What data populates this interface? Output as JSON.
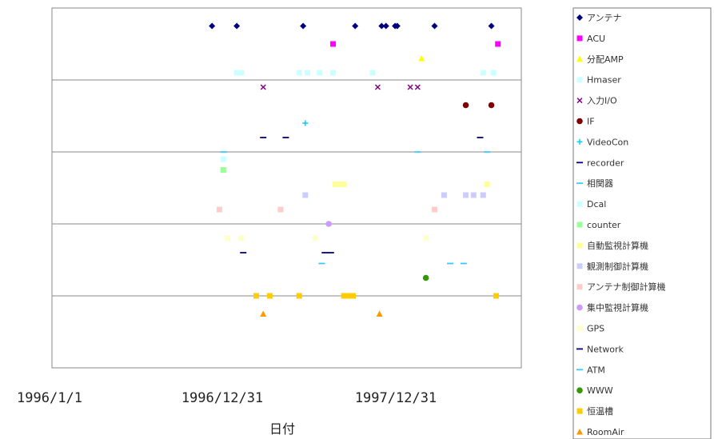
{
  "chart_data": {
    "type": "scatter",
    "title": "",
    "xlabel": "日付",
    "ylabel": "",
    "x_tick_labels": [
      "1996/1/1",
      "1996/12/31",
      "1997/12/31"
    ],
    "xlim": [
      "1995/07/12",
      "1998/06/28"
    ],
    "ylim": [
      0,
      5
    ],
    "grid": "horizontal",
    "legend_position": "right",
    "series": [
      {
        "name": "アンテナ",
        "color": "#000080",
        "marker": "diamond",
        "points": [
          [
            "1996/07/15",
            4.75
          ],
          [
            "1996/09/10",
            4.75
          ],
          [
            "1997/02/10",
            4.75
          ],
          [
            "1997/06/10",
            4.75
          ],
          [
            "1997/08/10",
            4.75
          ],
          [
            "1997/08/20",
            4.75
          ],
          [
            "1997/09/10",
            4.75
          ],
          [
            "1997/09/15",
            4.75
          ],
          [
            "1997/12/10",
            4.75
          ],
          [
            "1998/04/20",
            4.75
          ]
        ]
      },
      {
        "name": "ACU",
        "color": "#ff00ff",
        "marker": "square",
        "points": [
          [
            "1997/04/20",
            4.5
          ],
          [
            "1998/05/05",
            4.5
          ]
        ]
      },
      {
        "name": "分配AMP",
        "color": "#ffff00",
        "marker": "triangle",
        "points": [
          [
            "1997/11/10",
            4.3
          ]
        ]
      },
      {
        "name": "Hmaser",
        "color": "#ccffff",
        "marker": "square",
        "points": [
          [
            "1996/09/10",
            4.1
          ],
          [
            "1996/09/20",
            4.1
          ],
          [
            "1997/02/01",
            4.1
          ],
          [
            "1997/02/20",
            4.1
          ],
          [
            "1997/03/20",
            4.1
          ],
          [
            "1997/04/20",
            4.1
          ],
          [
            "1997/07/20",
            4.1
          ],
          [
            "1998/04/01",
            4.1
          ],
          [
            "1998/04/25",
            4.1
          ]
        ]
      },
      {
        "name": "入力I/O",
        "color": "#800080",
        "marker": "x",
        "points": [
          [
            "1996/11/10",
            3.9
          ],
          [
            "1997/08/01",
            3.9
          ],
          [
            "1997/10/15",
            3.9
          ],
          [
            "1997/11/01",
            3.9
          ]
        ]
      },
      {
        "name": "IF",
        "color": "#800000",
        "marker": "circle",
        "points": [
          [
            "1998/02/20",
            3.65
          ],
          [
            "1998/04/20",
            3.65
          ]
        ]
      },
      {
        "name": "VideoCon",
        "color": "#00ccff",
        "marker": "plus",
        "points": [
          [
            "1997/02/15",
            3.4
          ]
        ]
      },
      {
        "name": "recorder",
        "color": "#000080",
        "marker": "dash",
        "points": [
          [
            "1996/11/10",
            3.2
          ],
          [
            "1997/01/01",
            3.2
          ],
          [
            "1998/03/25",
            3.2
          ]
        ]
      },
      {
        "name": "相関器",
        "color": "#33ccff",
        "marker": "dash",
        "points": [
          [
            "1996/08/10",
            3.0
          ],
          [
            "1997/11/01",
            3.0
          ],
          [
            "1998/04/10",
            3.0
          ]
        ]
      },
      {
        "name": "Dcal",
        "color": "#ccffff",
        "marker": "square",
        "points": [
          [
            "1996/08/10",
            2.9
          ]
        ]
      },
      {
        "name": "counter",
        "color": "#99ff99",
        "marker": "square",
        "points": [
          [
            "1996/08/10",
            2.75
          ]
        ]
      },
      {
        "name": "自動監視計算機",
        "color": "#ffff99",
        "marker": "square",
        "points": [
          [
            "1997/04/25",
            2.55
          ],
          [
            "1997/05/05",
            2.55
          ],
          [
            "1997/05/15",
            2.55
          ],
          [
            "1998/04/10",
            2.55
          ]
        ]
      },
      {
        "name": "観測制御計算機",
        "color": "#ccccff",
        "marker": "square",
        "points": [
          [
            "1997/02/15",
            2.4
          ],
          [
            "1998/01/01",
            2.4
          ],
          [
            "1998/02/20",
            2.4
          ],
          [
            "1998/03/10",
            2.4
          ],
          [
            "1998/04/01",
            2.4
          ]
        ]
      },
      {
        "name": "アンテナ制御計算機",
        "color": "#ffcccc",
        "marker": "square",
        "points": [
          [
            "1996/08/01",
            2.2
          ],
          [
            "1996/12/20",
            2.2
          ],
          [
            "1997/12/10",
            2.2
          ]
        ]
      },
      {
        "name": "集中監視計算機",
        "color": "#cc99ff",
        "marker": "circle",
        "points": [
          [
            "1997/04/10",
            2.0
          ]
        ]
      },
      {
        "name": "GPS",
        "color": "#ffffcc",
        "marker": "square",
        "points": [
          [
            "1996/08/20",
            1.8
          ],
          [
            "1996/09/20",
            1.8
          ],
          [
            "1997/03/10",
            1.8
          ],
          [
            "1997/11/20",
            1.8
          ]
        ]
      },
      {
        "name": "Network",
        "color": "#000080",
        "marker": "dash",
        "points": [
          [
            "1996/09/25",
            1.6
          ],
          [
            "1997/04/01",
            1.6
          ],
          [
            "1997/04/15",
            1.6
          ]
        ]
      },
      {
        "name": "ATM",
        "color": "#33ccff",
        "marker": "dash",
        "points": [
          [
            "1997/03/25",
            1.45
          ],
          [
            "1998/01/15",
            1.45
          ],
          [
            "1998/02/15",
            1.45
          ]
        ]
      },
      {
        "name": "WWW",
        "color": "#339900",
        "marker": "circle",
        "points": [
          [
            "1997/11/20",
            1.25
          ]
        ]
      },
      {
        "name": "恒温槽",
        "color": "#ffcc00",
        "marker": "square",
        "points": [
          [
            "1996/10/25",
            1.0
          ],
          [
            "1996/11/25",
            1.0
          ],
          [
            "1997/02/01",
            1.0
          ],
          [
            "1997/05/15",
            1.0
          ],
          [
            "1997/05/25",
            1.0
          ],
          [
            "1997/06/05",
            1.0
          ],
          [
            "1998/05/01",
            1.0
          ]
        ]
      },
      {
        "name": "RoomAir",
        "color": "#ff9900",
        "marker": "triangle",
        "points": [
          [
            "1996/11/10",
            0.75
          ],
          [
            "1997/08/05",
            0.75
          ]
        ]
      }
    ]
  }
}
